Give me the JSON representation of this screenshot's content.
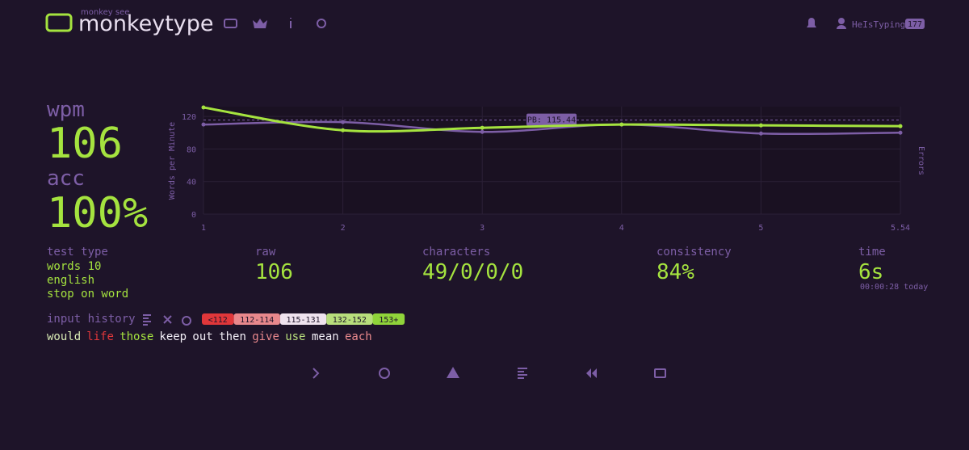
{
  "header": {
    "logo_top": "monkey see",
    "logo": "monkeytype",
    "user": "HeIsTyping",
    "level": "177"
  },
  "stats": {
    "wpm_label": "wpm",
    "wpm": "106",
    "acc_label": "acc",
    "acc": "100%"
  },
  "chart_data": {
    "type": "line",
    "categories": [
      "1",
      "2",
      "3",
      "4",
      "5",
      "5.54"
    ],
    "series": [
      {
        "color": "#7d5ea6",
        "values": [
          110,
          113,
          101,
          110,
          99,
          100
        ]
      },
      {
        "color": "#a5e33f",
        "values": [
          131,
          103,
          106,
          110,
          109,
          108
        ]
      }
    ],
    "ylabel": "Words per Minute",
    "y2label": "Errors",
    "ylim": [
      0,
      132
    ],
    "yticks": [
      0,
      40,
      80,
      120
    ],
    "grid": true,
    "pb": {
      "value": 115.44,
      "label": "PB: 115.44"
    }
  },
  "details": {
    "test_type_label": "test type",
    "test_type": [
      "words 10",
      "english",
      "stop on word"
    ],
    "raw_label": "raw",
    "raw": "106",
    "characters_label": "characters",
    "characters": "49/0/0/0",
    "consistency_label": "consistency",
    "consistency": "84%",
    "time_label": "time",
    "time": "6s",
    "time_note": "00:00:28 today"
  },
  "input_history": {
    "label": "input history",
    "legend": [
      {
        "label": "<112",
        "color": "#e0373a"
      },
      {
        "label": "112-114",
        "color": "#e8888c"
      },
      {
        "label": "115-131",
        "color": "#efe3ee"
      },
      {
        "label": "132-152",
        "color": "#b8de7c"
      },
      {
        "label": "153+",
        "color": "#90d43a"
      }
    ],
    "words": [
      {
        "text": "would",
        "color": "#d9ebb5"
      },
      {
        "text": "life",
        "color": "#e0373a"
      },
      {
        "text": "those",
        "color": "#a5e33f"
      },
      {
        "text": "keep",
        "color": "#f2eef6"
      },
      {
        "text": "out",
        "color": "#f2eef6"
      },
      {
        "text": "then",
        "color": "#f2eef6"
      },
      {
        "text": "give",
        "color": "#e8888c"
      },
      {
        "text": "use",
        "color": "#b8de7c"
      },
      {
        "text": "mean",
        "color": "#f2eef6"
      },
      {
        "text": "each",
        "color": "#e8888c"
      }
    ]
  }
}
